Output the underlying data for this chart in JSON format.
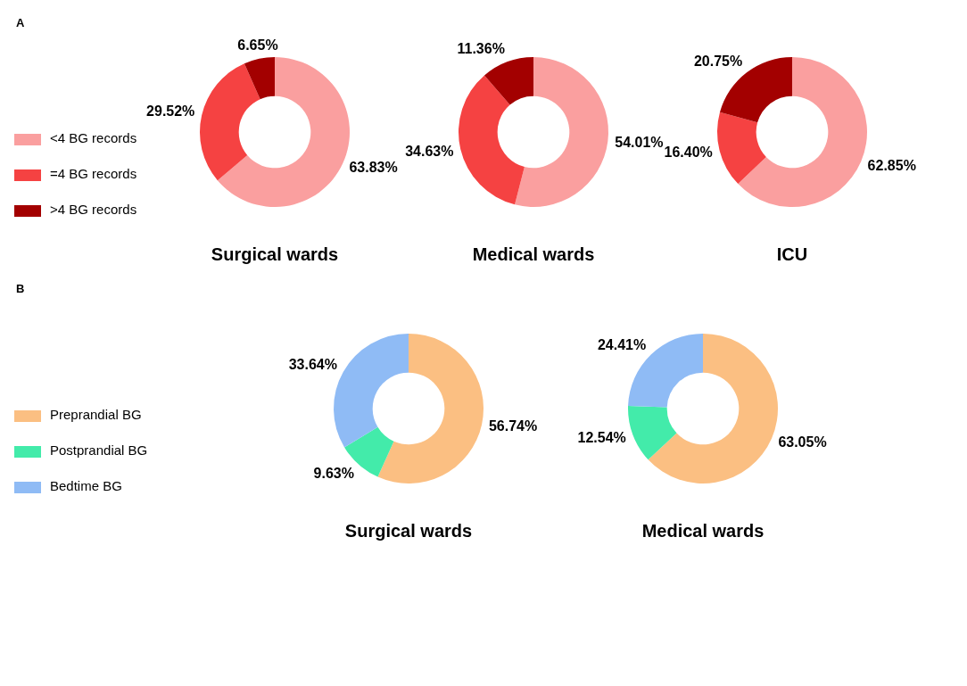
{
  "chart_data": [
    {
      "type": "donut",
      "title": "Surgical wards",
      "categories": [
        "<4 BG records",
        "=4 BG records",
        ">4 BG records"
      ],
      "values": [
        63.83,
        29.52,
        6.65
      ],
      "value_labels": [
        "63.83%",
        "29.52%",
        "6.65%"
      ],
      "colors": [
        "#fa9f9f",
        "#f54242",
        "#a30000"
      ],
      "legend": "left",
      "annotations": [
        "A"
      ]
    },
    {
      "type": "donut",
      "title": "Medical wards",
      "values": [
        54.01,
        34.63,
        11.36
      ],
      "value_labels": [
        "54.01%",
        "34.63%",
        "11.36%"
      ],
      "colors": [
        "#fa9f9f",
        "#f54242",
        "#a30000"
      ]
    },
    {
      "type": "donut",
      "title": "ICU",
      "values": [
        62.85,
        16.4,
        20.75
      ],
      "value_labels": [
        "62.85%",
        "16.40%",
        "20.75%"
      ],
      "colors": [
        "#fa9f9f",
        "#f54242",
        "#a30000"
      ]
    },
    {
      "type": "donut",
      "title": "Surgical wards",
      "categories": [
        "Preprandial BG",
        "Postprandial BG",
        "Bedtime BG"
      ],
      "values": [
        56.74,
        9.63,
        33.64
      ],
      "value_labels": [
        "56.74%",
        "9.63%",
        "33.64%"
      ],
      "colors": [
        "#fbbf82",
        "#43ebaa",
        "#8fbbf5"
      ],
      "legend": "left",
      "annotations": [
        "B"
      ]
    },
    {
      "type": "donut",
      "title": "Medical wards",
      "values": [
        63.05,
        12.54,
        24.41
      ],
      "value_labels": [
        "63.05%",
        "12.54%",
        "24.41%"
      ],
      "colors": [
        "#fbbf82",
        "#43ebaa",
        "#8fbbf5"
      ]
    }
  ]
}
